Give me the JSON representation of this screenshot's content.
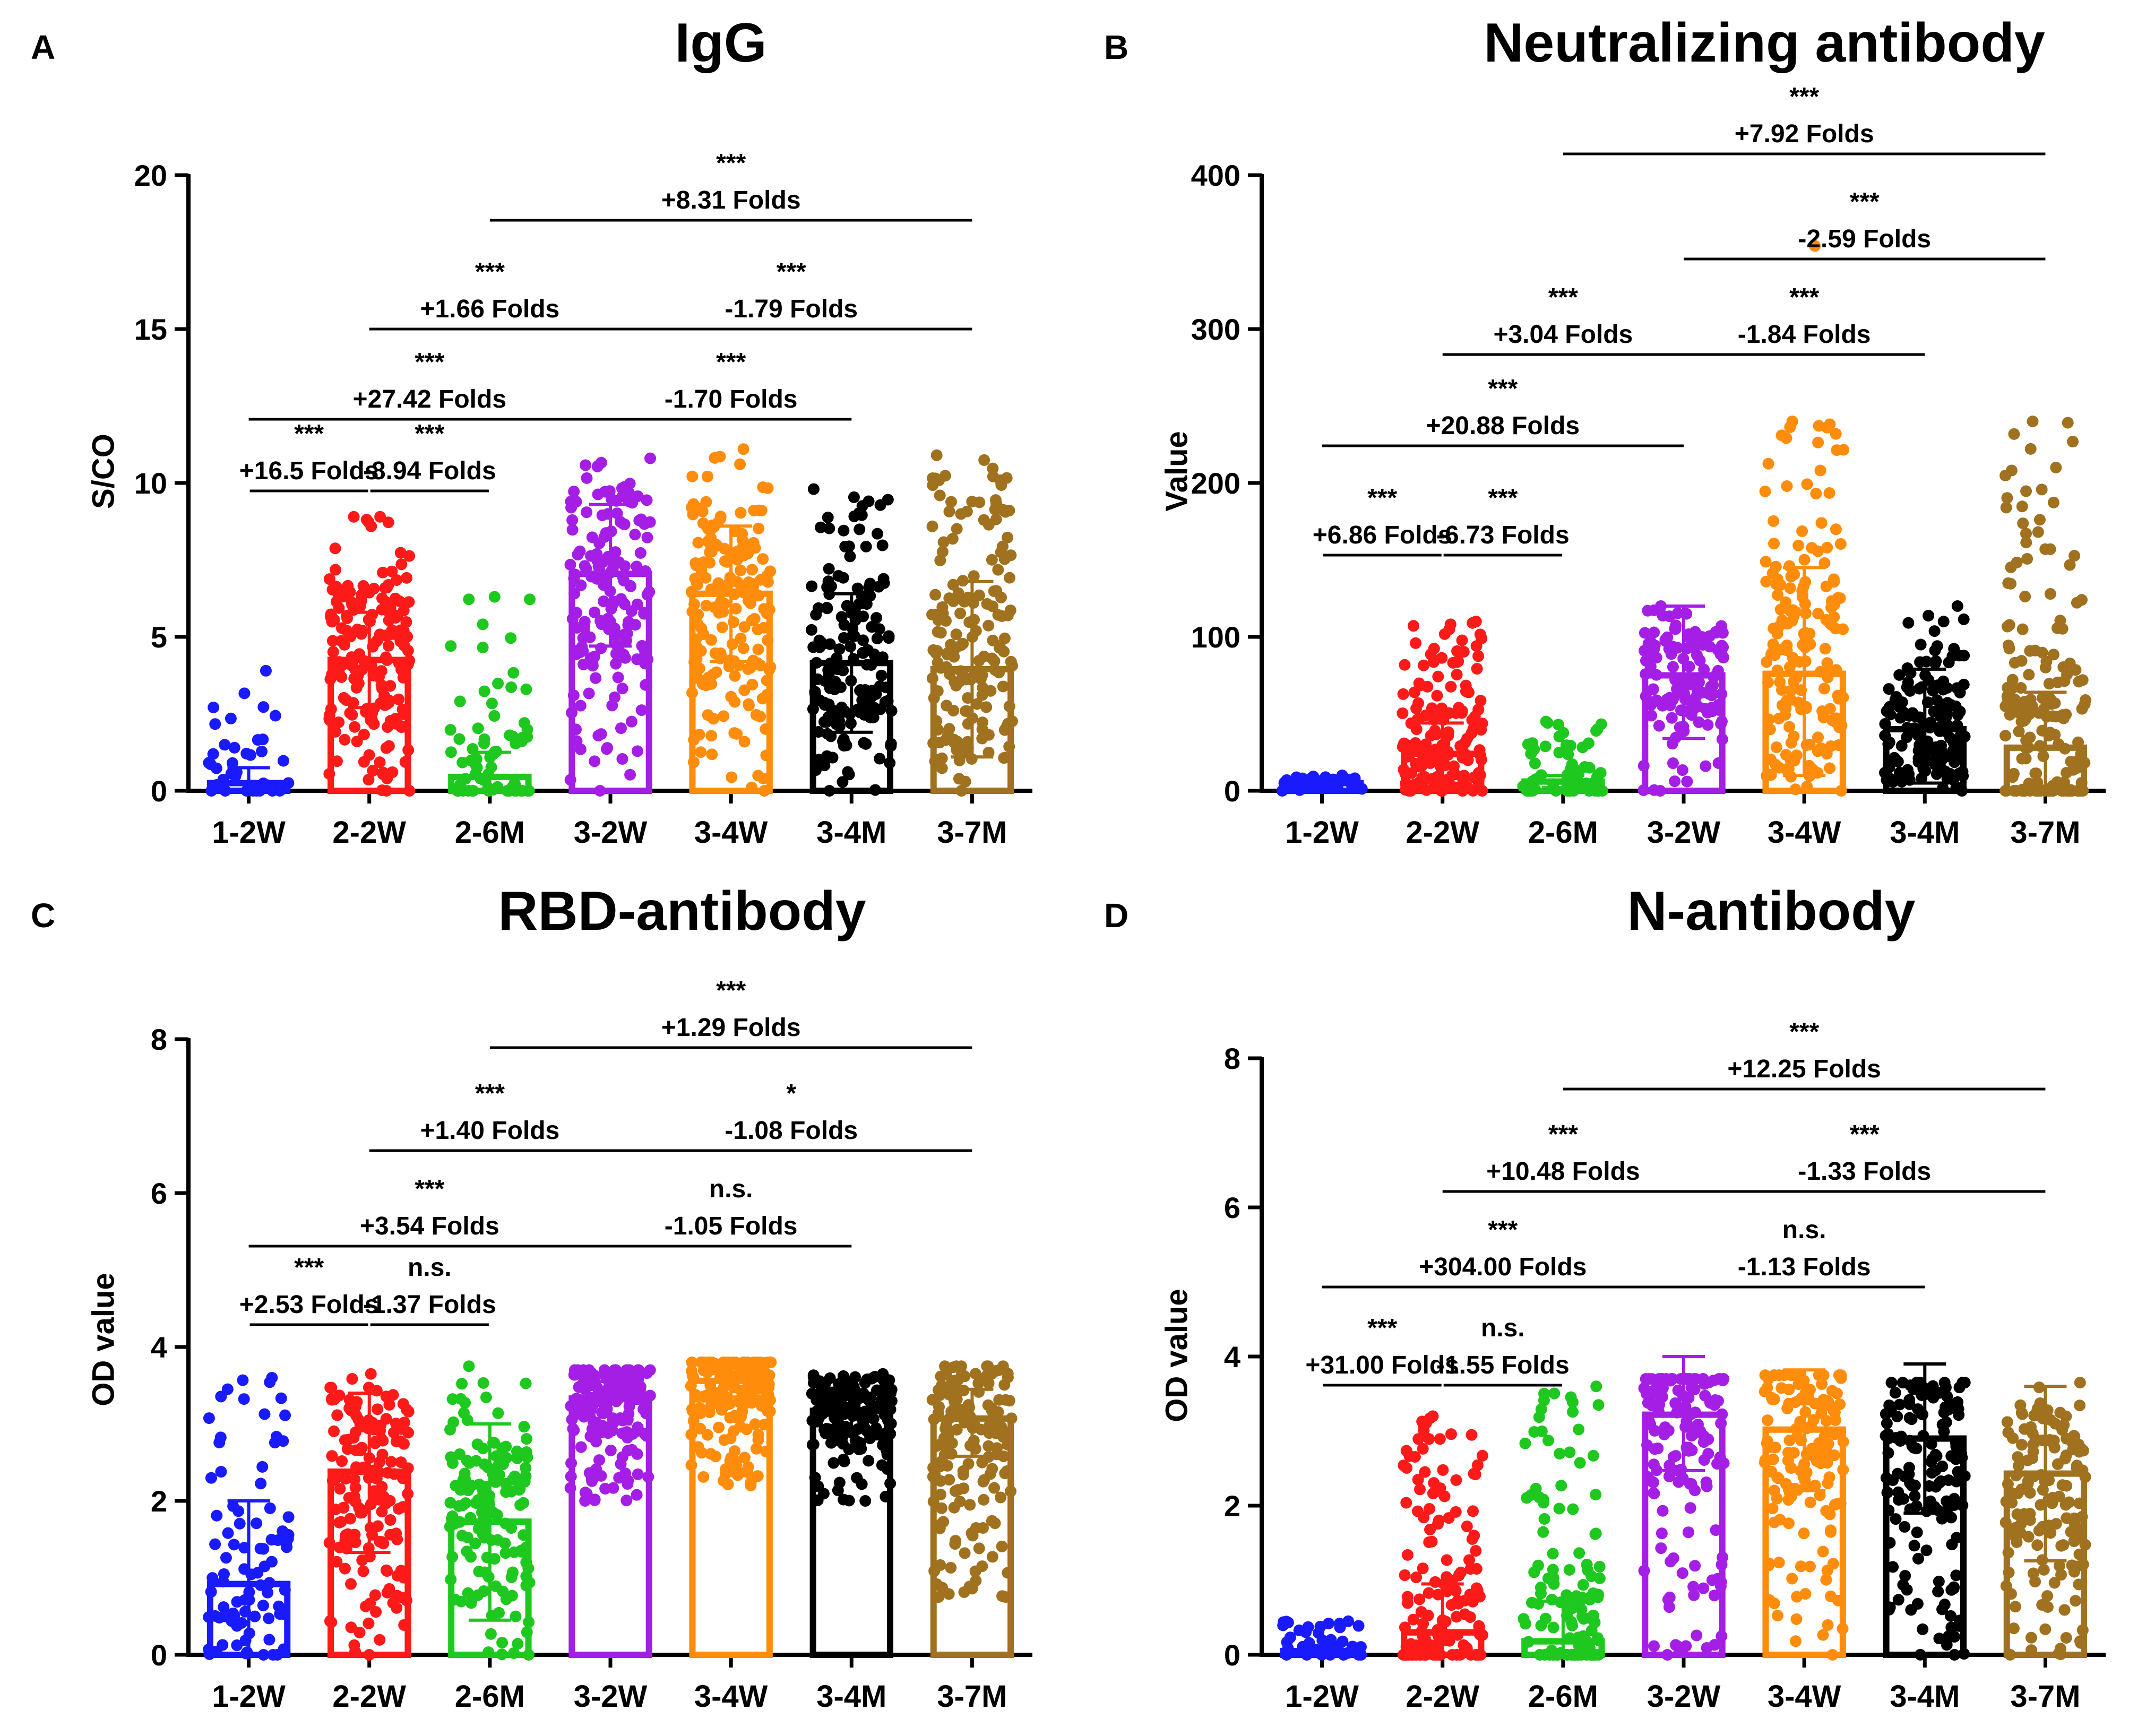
{
  "chart_data": [
    {
      "panel": "A",
      "type": "bar",
      "title": "IgG",
      "xlabel": "",
      "ylabel": "S/CO",
      "ylim": [
        0,
        20
      ],
      "yticks": [
        "0",
        "5",
        "10",
        "15",
        "20"
      ],
      "categories": [
        "1-2W",
        "2-2W",
        "2-6M",
        "3-2W",
        "3-4W",
        "3-4M",
        "3-7M"
      ],
      "colors": [
        "#1a1aff",
        "#ff1a1a",
        "#1ec81e",
        "#a51ee6",
        "#ff8c0a",
        "#000000",
        "#a0711e"
      ],
      "values": [
        0.25,
        4.25,
        0.45,
        7.05,
        6.4,
        4.15,
        3.95
      ],
      "error_upper": [
        0.75,
        5.8,
        1.25,
        9.3,
        8.6,
        6.4,
        6.8
      ],
      "error_lower": [
        0.0,
        2.7,
        0.0,
        4.7,
        4.2,
        1.9,
        1.1
      ],
      "scatter_range": [
        [
          0,
          3.9
        ],
        [
          0,
          8.9
        ],
        [
          0,
          6.3
        ],
        [
          0,
          10.8
        ],
        [
          0,
          11.1
        ],
        [
          0,
          9.8
        ],
        [
          0,
          10.9
        ]
      ],
      "scatter_counts": [
        40,
        180,
        70,
        170,
        180,
        170,
        170
      ],
      "comparisons": [
        {
          "from": 0,
          "to": 1,
          "sig": "***",
          "fold": "+16.5 Folds",
          "level": 1,
          "underline": true
        },
        {
          "from": 1,
          "to": 2,
          "sig": "***",
          "fold": "-8.94 Folds",
          "level": 1,
          "underline": true
        },
        {
          "from": 0,
          "to": 3,
          "sig": "***",
          "fold": "+27.42 Folds",
          "level": 2
        },
        {
          "from": 3,
          "to": 5,
          "sig": "***",
          "fold": "-1.70 Folds",
          "level": 2
        },
        {
          "from": 1,
          "to": 3,
          "sig": "***",
          "fold": "+1.66 Folds",
          "level": 3
        },
        {
          "from": 3,
          "to": 6,
          "sig": "***",
          "fold": "-1.79 Folds",
          "level": 3
        },
        {
          "from": 2,
          "to": 6,
          "sig": "***",
          "fold": "+8.31 Folds",
          "level": 4
        }
      ]
    },
    {
      "panel": "B",
      "type": "bar",
      "title": "Neutralizing antibody",
      "xlabel": "",
      "ylabel": "Value",
      "ylim": [
        0,
        400
      ],
      "yticks": [
        "0",
        "100",
        "200",
        "300",
        "400"
      ],
      "categories": [
        "1-2W",
        "2-2W",
        "2-6M",
        "3-2W",
        "3-4W",
        "3-4M",
        "3-7M"
      ],
      "colors": [
        "#1a1aff",
        "#ff1a1a",
        "#1ec81e",
        "#a51ee6",
        "#ff8c0a",
        "#000000",
        "#a0711e"
      ],
      "values": [
        5,
        24,
        6,
        75,
        76,
        40,
        28
      ],
      "error_upper": [
        9,
        44,
        10,
        120,
        145,
        79,
        64
      ],
      "error_lower": [
        2,
        8,
        2,
        34,
        10,
        5,
        3
      ],
      "scatter_range": [
        [
          0,
          10
        ],
        [
          0,
          110
        ],
        [
          0,
          45
        ],
        [
          0,
          120
        ],
        [
          0,
          240
        ],
        [
          0,
          120
        ],
        [
          0,
          240
        ]
      ],
      "scatter_counts": [
        40,
        160,
        60,
        140,
        170,
        150,
        170
      ],
      "outliers": [
        {
          "cat": 4,
          "y": 354
        }
      ],
      "comparisons": [
        {
          "from": 0,
          "to": 1,
          "sig": "***",
          "fold": "+6.86 Folds",
          "level": 1,
          "underline": true
        },
        {
          "from": 1,
          "to": 2,
          "sig": "***",
          "fold": "-6.73 Folds",
          "level": 1,
          "underline": true
        },
        {
          "from": 0,
          "to": 3,
          "sig": "***",
          "fold": "+20.88 Folds",
          "level": 2
        },
        {
          "from": 1,
          "to": 3,
          "sig": "***",
          "fold": "+3.04 Folds",
          "level": 3
        },
        {
          "from": 3,
          "to": 5,
          "sig": "***",
          "fold": "-1.84 Folds",
          "level": 3
        },
        {
          "from": 3,
          "to": 6,
          "sig": "***",
          "fold": "-2.59 Folds",
          "level": 4
        },
        {
          "from": 2,
          "to": 6,
          "sig": "***",
          "fold": "+7.92 Folds",
          "level": 5
        }
      ]
    },
    {
      "panel": "C",
      "type": "bar",
      "title": "RBD-antibody",
      "xlabel": "",
      "ylabel": "OD value",
      "ylim": [
        0,
        8
      ],
      "yticks": [
        "0",
        "2",
        "4",
        "6",
        "8"
      ],
      "categories": [
        "1-2W",
        "2-2W",
        "2-6M",
        "3-2W",
        "3-4W",
        "3-4M",
        "3-7M"
      ],
      "colors": [
        "#1a1aff",
        "#ff1a1a",
        "#1ec81e",
        "#a51ee6",
        "#ff8c0a",
        "#000000",
        "#a0711e"
      ],
      "values": [
        0.92,
        2.38,
        1.73,
        3.33,
        3.56,
        3.17,
        3.07
      ],
      "error_upper": [
        2.0,
        3.4,
        3.0,
        3.55,
        3.72,
        3.35,
        3.45
      ],
      "error_lower": [
        0.0,
        1.33,
        0.45,
        3.0,
        3.35,
        2.95,
        2.58
      ],
      "scatter_range": [
        [
          0,
          3.6
        ],
        [
          0,
          3.65
        ],
        [
          0,
          3.75
        ],
        [
          2.0,
          3.7
        ],
        [
          2.2,
          3.8
        ],
        [
          2.0,
          3.65
        ],
        [
          0.75,
          3.75
        ]
      ],
      "scatter_counts": [
        90,
        160,
        150,
        160,
        170,
        170,
        160
      ],
      "comparisons": [
        {
          "from": 0,
          "to": 1,
          "sig": "***",
          "fold": "+2.53 Folds",
          "level": 1,
          "underline": true
        },
        {
          "from": 1,
          "to": 2,
          "sig": "n.s.",
          "fold": "-1.37 Folds",
          "level": 1,
          "underline": true
        },
        {
          "from": 0,
          "to": 3,
          "sig": "***",
          "fold": "+3.54 Folds",
          "level": 2
        },
        {
          "from": 3,
          "to": 5,
          "sig": "n.s.",
          "fold": "-1.05 Folds",
          "level": 2
        },
        {
          "from": 1,
          "to": 3,
          "sig": "***",
          "fold": "+1.40 Folds",
          "level": 3
        },
        {
          "from": 3,
          "to": 6,
          "sig": "*",
          "fold": "-1.08 Folds",
          "level": 3
        },
        {
          "from": 2,
          "to": 6,
          "sig": "***",
          "fold": "+1.29 Folds",
          "level": 4
        }
      ]
    },
    {
      "panel": "D",
      "type": "bar",
      "title": "N-antibody",
      "xlabel": "",
      "ylabel": "OD value",
      "ylim": [
        0,
        8
      ],
      "yticks": [
        "0",
        "2",
        "4",
        "6",
        "8"
      ],
      "categories": [
        "1-2W",
        "2-2W",
        "2-6M",
        "3-2W",
        "3-4W",
        "3-4M",
        "3-7M"
      ],
      "colors": [
        "#1a1aff",
        "#ff1a1a",
        "#1ec81e",
        "#a51ee6",
        "#ff8c0a",
        "#000000",
        "#a0711e"
      ],
      "values": [
        0.05,
        0.3,
        0.18,
        3.22,
        3.02,
        2.9,
        2.43
      ],
      "error_upper": [
        0.1,
        0.95,
        0.72,
        4.0,
        3.82,
        3.9,
        3.6
      ],
      "error_lower": [
        0.0,
        0.0,
        0.0,
        2.47,
        2.2,
        1.9,
        1.26
      ],
      "scatter_range": [
        [
          0,
          0.45
        ],
        [
          0,
          3.2
        ],
        [
          0,
          3.6
        ],
        [
          0,
          3.7
        ],
        [
          0,
          3.75
        ],
        [
          0,
          3.65
        ],
        [
          0,
          3.65
        ]
      ],
      "scatter_counts": [
        40,
        150,
        120,
        150,
        150,
        150,
        150
      ],
      "comparisons": [
        {
          "from": 0,
          "to": 1,
          "sig": "***",
          "fold": "+31.00 Folds",
          "level": 1,
          "underline": true
        },
        {
          "from": 1,
          "to": 2,
          "sig": "n.s.",
          "fold": "-1.55 Folds",
          "level": 1,
          "underline": true
        },
        {
          "from": 0,
          "to": 3,
          "sig": "***",
          "fold": "+304.00 Folds",
          "level": 2
        },
        {
          "from": 3,
          "to": 5,
          "sig": "n.s.",
          "fold": "-1.13 Folds",
          "level": 2
        },
        {
          "from": 1,
          "to": 3,
          "sig": "***",
          "fold": "+10.48 Folds",
          "level": 3
        },
        {
          "from": 3,
          "to": 6,
          "sig": "***",
          "fold": "-1.33 Folds",
          "level": 3
        },
        {
          "from": 2,
          "to": 6,
          "sig": "***",
          "fold": "+12.25 Folds",
          "level": 4
        }
      ]
    }
  ]
}
